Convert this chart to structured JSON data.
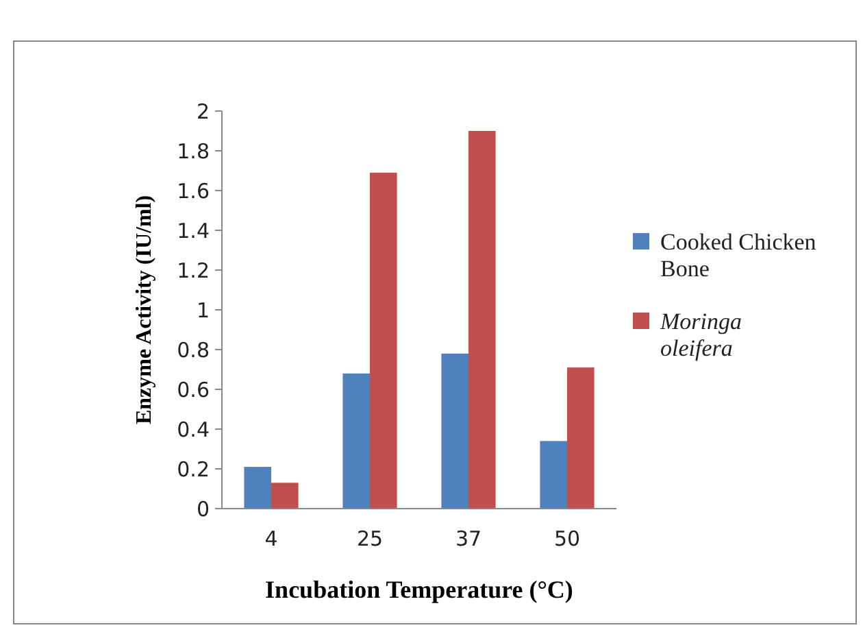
{
  "chart_data": {
    "type": "bar",
    "xlabel": "Incubation Temperature (°C)",
    "ylabel": "Enzyme Activity (IU/ml)",
    "categories": [
      "4",
      "25",
      "37",
      "50"
    ],
    "series": [
      {
        "name": "Cooked Chicken Bone",
        "color": "#4f81bd",
        "values": [
          0.21,
          0.68,
          0.78,
          0.34
        ]
      },
      {
        "name": "Moringa oleifera",
        "color": "#c0504d",
        "values": [
          0.13,
          1.69,
          1.9,
          0.71
        ]
      }
    ],
    "ylim": [
      0,
      2
    ],
    "yticks": [
      0,
      0.2,
      0.4,
      0.6,
      0.8,
      1,
      1.2,
      1.4,
      1.6,
      1.8,
      2
    ],
    "grid": false,
    "legend": "right"
  }
}
